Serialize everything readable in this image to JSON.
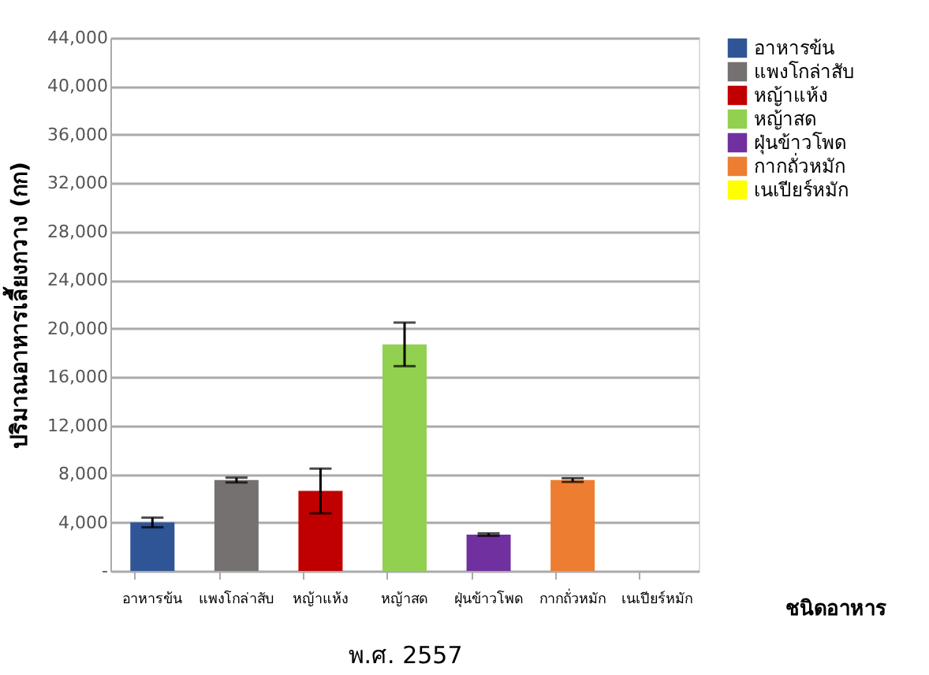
{
  "chart_data": {
    "type": "bar",
    "xlabel": "พ.ศ. 2557",
    "ylabel": "ปริมาณอาหารเลี้ยงกวาง (กก)",
    "categories": [
      "อาหารข้น",
      "แพงโกล่าสับ",
      "หญ้าแห้ง",
      "หญ้าสด",
      "ฝุ่นข้าวโพด",
      "กากถั่วหมัก",
      "เนเปียร์หมัก"
    ],
    "series": [
      {
        "name": "อาหารข้น",
        "color": "#2f5597",
        "values": [
          4000,
          null,
          null,
          null,
          null,
          null,
          null
        ],
        "errors": [
          400,
          null,
          null,
          null,
          null,
          null,
          null
        ]
      },
      {
        "name": "แพงโกล่าสับ",
        "color": "#767171",
        "values": [
          null,
          7500,
          null,
          null,
          null,
          null,
          null
        ],
        "errors": [
          null,
          200,
          null,
          null,
          null,
          null,
          null
        ]
      },
      {
        "name": "หญ้าแห้ง",
        "color": "#c00000",
        "values": [
          null,
          null,
          6600,
          null,
          null,
          null,
          null
        ],
        "errors": [
          null,
          null,
          1850,
          null,
          null,
          null,
          null
        ]
      },
      {
        "name": "หญ้าสด",
        "color": "#92d050",
        "values": [
          null,
          null,
          null,
          18700,
          null,
          null,
          null
        ],
        "errors": [
          null,
          null,
          null,
          1800,
          null,
          null,
          null
        ]
      },
      {
        "name": "ฝุ่นข้าวโพด",
        "color": "#7030a0",
        "values": [
          null,
          null,
          null,
          null,
          3000,
          null,
          null
        ],
        "errors": [
          null,
          null,
          null,
          null,
          100,
          null,
          null
        ]
      },
      {
        "name": "กากถั่วหมัก",
        "color": "#ed7d31",
        "values": [
          null,
          null,
          null,
          null,
          null,
          7500,
          null
        ],
        "errors": [
          null,
          null,
          null,
          null,
          null,
          150,
          null
        ]
      },
      {
        "name": "เนเปียร์หมัก",
        "color": "#ffff00",
        "values": [
          null,
          null,
          null,
          null,
          null,
          null,
          0
        ]
      }
    ],
    "ylim": [
      0,
      44000
    ],
    "yticks": [
      {
        "value": 0,
        "label": "-"
      },
      {
        "value": 4000,
        "label": "4,000"
      },
      {
        "value": 8000,
        "label": "8,000"
      },
      {
        "value": 12000,
        "label": "12,000"
      },
      {
        "value": 16000,
        "label": "16,000"
      },
      {
        "value": 20000,
        "label": "20,000"
      },
      {
        "value": 24000,
        "label": "24,000"
      },
      {
        "value": 28000,
        "label": "28,000"
      },
      {
        "value": 32000,
        "label": "32,000"
      },
      {
        "value": 36000,
        "label": "36,000"
      },
      {
        "value": 40000,
        "label": "40,000"
      },
      {
        "value": 44000,
        "label": "44,000"
      }
    ],
    "grid": "y",
    "legend": "top right",
    "annotations": [
      "ชนิดอาหาร"
    ]
  }
}
